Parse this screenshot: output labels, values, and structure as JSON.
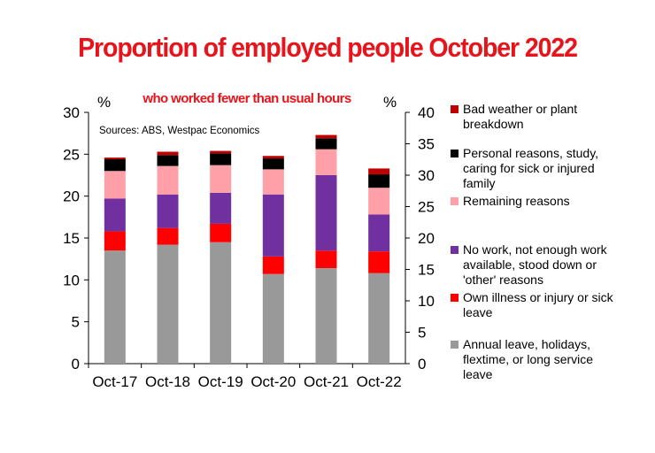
{
  "chart_data": {
    "type": "bar",
    "stacked": true,
    "title": "Proportion of employed people October 2022",
    "subtitle": "who worked fewer than usual hours",
    "source": "Sources: ABS, Westpac Economics",
    "left_axis_unit": "%",
    "right_axis_unit": "%",
    "ylim_left": [
      0,
      30
    ],
    "yticks_left": [
      0,
      5,
      10,
      15,
      20,
      25,
      30
    ],
    "ylim_right": [
      0,
      40
    ],
    "yticks_right": [
      0,
      5,
      10,
      15,
      20,
      25,
      30,
      35,
      40
    ],
    "categories": [
      "Oct-17",
      "Oct-18",
      "Oct-19",
      "Oct-20",
      "Oct-21",
      "Oct-22"
    ],
    "grid": false,
    "legend_position": "right",
    "series": [
      {
        "name": "Annual leave, holidays, flextime, or long service leave",
        "legend_lines": [
          "Annual leave, holidays,",
          "flextime, or long service",
          "leave"
        ],
        "color": "#999999",
        "values": [
          13.5,
          14.2,
          14.5,
          10.7,
          11.4,
          10.8
        ]
      },
      {
        "name": "Own illness or injury or sick leave",
        "legend_lines": [
          "Own illness or injury or sick",
          "leave"
        ],
        "color": "#ff0000",
        "values": [
          2.3,
          2.0,
          2.2,
          2.1,
          2.1,
          2.6
        ]
      },
      {
        "name": "No work, not enough work available, stood down or 'other' reasons",
        "legend_lines": [
          "No work, not enough work",
          "available, stood down or",
          "'other' reasons"
        ],
        "color": "#7030a0",
        "values": [
          3.9,
          4.0,
          3.7,
          7.4,
          9.0,
          4.4
        ]
      },
      {
        "name": "Remaining reasons",
        "legend_lines": [
          "Remaining reasons"
        ],
        "color": "#ffa0a8",
        "values": [
          3.3,
          3.4,
          3.3,
          3.0,
          3.1,
          3.2
        ]
      },
      {
        "name": "Personal reasons, study, caring for sick or injured family",
        "legend_lines": [
          "Personal reasons, study,",
          "caring for sick or injured",
          "family"
        ],
        "color": "#000000",
        "values": [
          1.4,
          1.3,
          1.4,
          1.3,
          1.3,
          1.6
        ]
      },
      {
        "name": "Bad weather or plant breakdown",
        "legend_lines": [
          "Bad weather or plant",
          "breakdown"
        ],
        "color": "#c00000",
        "values": [
          0.2,
          0.4,
          0.3,
          0.3,
          0.4,
          0.7
        ]
      }
    ],
    "legend_order": [
      5,
      4,
      3,
      2,
      1,
      0
    ]
  }
}
